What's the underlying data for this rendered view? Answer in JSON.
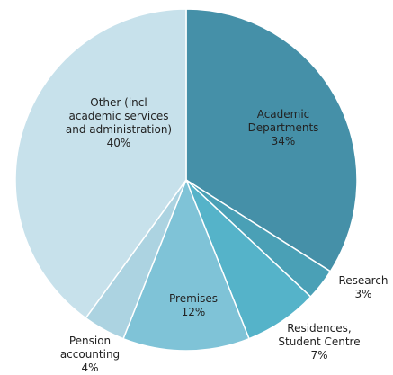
{
  "chart_data": {
    "type": "pie",
    "categories": [
      "Academic Departments",
      "Research",
      "Residences, Student Centre",
      "Premises",
      "Pension accounting",
      "Other (incl academic services and administration)"
    ],
    "values": [
      34,
      3,
      7,
      12,
      4,
      40
    ],
    "value_labels": [
      "34%",
      "3%",
      "7%",
      "12%",
      "4%",
      "40%"
    ],
    "colors": [
      "#4590a8",
      "#4aa0b6",
      "#55b3c9",
      "#7fc3d7",
      "#acd3e1",
      "#c7e1eb"
    ]
  }
}
